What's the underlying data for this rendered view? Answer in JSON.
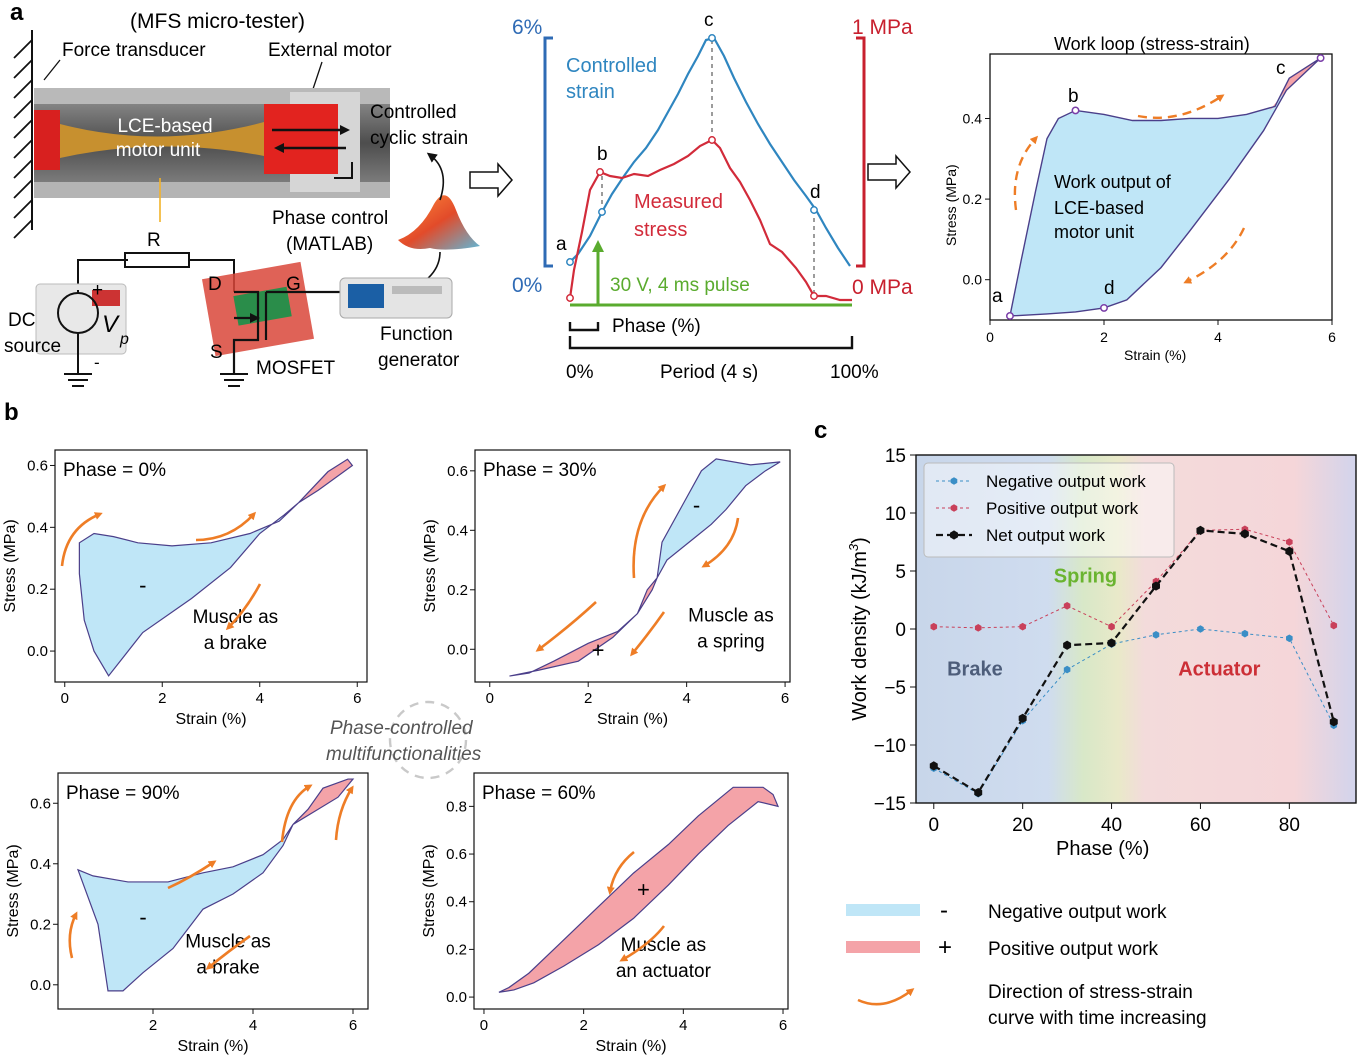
{
  "panel_labels": {
    "a": "a",
    "b": "b",
    "c": "c"
  },
  "setup": {
    "title": "(MFS micro-tester)",
    "force_transducer": "Force transducer",
    "external_motor": "External motor",
    "lce_line1": "LCE-based",
    "lce_line2": "motor unit",
    "controlled_line1": "Controlled",
    "controlled_line2": "cyclic strain",
    "phase_control_line1": "Phase control",
    "phase_control_line2": "(MATLAB)",
    "resistor": "R",
    "drain": "D",
    "gate": "G",
    "source_pin": "S",
    "plus": "+",
    "minus": "-",
    "dc_line1": "DC",
    "dc_line2": "source",
    "vp": "V",
    "vp_sub": "p",
    "mosfet": "MOSFET",
    "fg_line1": "Function",
    "fg_line2": "generator"
  },
  "timing": {
    "strain_max": "6%",
    "strain_min": "0%",
    "stress_max": "1 MPa",
    "stress_min": "0 MPa",
    "controlled_line1": "Controlled",
    "controlled_line2": "strain",
    "measured_line1": "Measured",
    "measured_line2": "stress",
    "pulse": "30 V, 4 ms pulse",
    "phase": "Phase (%)",
    "period_start": "0%",
    "period": "Period (4 s)",
    "period_end": "100%",
    "pt_a": "a",
    "pt_b": "b",
    "pt_c": "c",
    "pt_d": "d",
    "colors": {
      "strain": "#2f86c0",
      "stress": "#d22b3a",
      "pulse": "#5aab2e",
      "strain_bracket": "#2f6bb5",
      "stress_bracket": "#c8202e"
    }
  },
  "workloop": {
    "title": "Work loop (stress-strain)",
    "xlabel": "Strain (%)",
    "ylabel": "Stress (MPa)",
    "xticks": [
      "0",
      "2",
      "4",
      "6"
    ],
    "yticks": [
      "0.0",
      "0.2",
      "0.4"
    ],
    "text_line1": "Work output of",
    "text_line2": "LCE-based",
    "text_line3": "motor unit",
    "pt_a": "a",
    "pt_b": "b",
    "pt_c": "c",
    "pt_d": "d"
  },
  "loops": {
    "xlabel": "Strain (%)",
    "ylabel": "Stress (MPa)",
    "p0": {
      "phase": "Phase = 0%",
      "xticks": [
        "0",
        "2",
        "4",
        "6"
      ],
      "yticks": [
        "0.0",
        "0.2",
        "0.4",
        "0.6"
      ],
      "line1": "Muscle as",
      "line2": "a brake",
      "sign": "-"
    },
    "p30": {
      "phase": "Phase = 30%",
      "xticks": [
        "0",
        "2",
        "4",
        "6"
      ],
      "yticks": [
        "0.0",
        "0.2",
        "0.4",
        "0.6"
      ],
      "line1": "Muscle as",
      "line2": "a spring",
      "sign_neg": "-",
      "sign_pos": "+"
    },
    "p90": {
      "phase": "Phase = 90%",
      "xticks": [
        "2",
        "4",
        "6"
      ],
      "yticks": [
        "0.0",
        "0.2",
        "0.4",
        "0.6"
      ],
      "line1": "Muscle as",
      "line2": "a brake",
      "sign": "-"
    },
    "p60": {
      "phase": "Phase = 60%",
      "xticks": [
        "0",
        "2",
        "4",
        "6"
      ],
      "yticks": [
        "0.0",
        "0.2",
        "0.4",
        "0.6",
        "0.8"
      ],
      "line1": "Muscle as",
      "line2": "an actuator",
      "sign": "+"
    },
    "center_line1": "Phase-controlled",
    "center_line2": "multifunctionalities"
  },
  "chart_data": {
    "type": "line",
    "xlabel": "Phase (%)",
    "ylabel": "Work density (kJ/m",
    "ylabel_sup": "3",
    "ylabel_end": ")",
    "xlim": [
      -4,
      95
    ],
    "ylim": [
      -15,
      15
    ],
    "xticks": [
      "0",
      "20",
      "40",
      "60",
      "80"
    ],
    "xtick_values": [
      0,
      20,
      40,
      60,
      80
    ],
    "yticks": [
      "−15",
      "−10",
      "−5",
      "0",
      "5",
      "10",
      "15"
    ],
    "ytick_values": [
      -15,
      -10,
      -5,
      0,
      5,
      10,
      15
    ],
    "x": [
      0,
      10,
      20,
      30,
      40,
      50,
      60,
      70,
      80,
      90
    ],
    "series": [
      {
        "name": "Negative output work",
        "color": "#3a8ec6",
        "values": [
          -12.0,
          -14.2,
          -7.9,
          -3.5,
          -1.3,
          -0.5,
          0.0,
          -0.4,
          -0.8,
          -8.3
        ]
      },
      {
        "name": "Positive output work",
        "color": "#c9405a",
        "values": [
          0.2,
          0.1,
          0.2,
          2.0,
          0.2,
          4.1,
          8.5,
          8.6,
          7.5,
          0.3
        ]
      },
      {
        "name": "Net output work",
        "color": "#111111",
        "values": [
          -11.8,
          -14.1,
          -7.7,
          -1.4,
          -1.2,
          3.7,
          8.5,
          8.2,
          6.7,
          -8.0
        ]
      }
    ],
    "regions": {
      "brake": "Brake",
      "spring": "Spring",
      "actuator": "Actuator"
    },
    "legend_position": "top-left",
    "grid": false
  },
  "bottom_legend": {
    "neg_sign": "-",
    "neg": "Negative output work",
    "pos_sign": "+",
    "pos": "Positive output work",
    "dir_line1": "Direction of stress-strain",
    "dir_line2": "curve with time increasing",
    "neg_color": "#bfe6f7",
    "pos_color": "#f4a3a8",
    "arrow_color": "#ee7d26"
  }
}
